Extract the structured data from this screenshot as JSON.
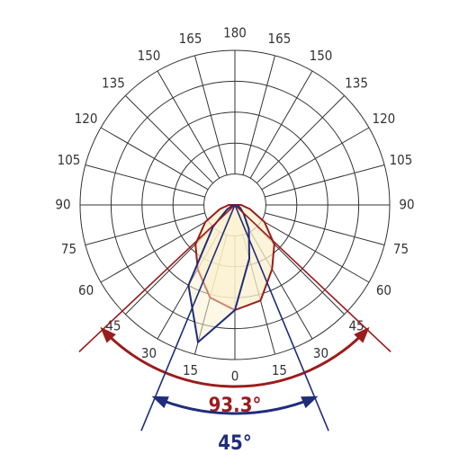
{
  "chart_data": {
    "type": "polar",
    "theta": [
      -90,
      -75,
      -60,
      -45,
      -30,
      -15,
      0,
      15,
      30,
      45,
      60,
      75,
      90
    ],
    "series": [
      {
        "color": "#9b1c1c",
        "values": [
          0.2,
          0.5,
          1.1,
          1.8,
          2.4,
          3.1,
          3.4,
          3.2,
          2.4,
          1.8,
          1.1,
          0.5,
          0.2
        ]
      },
      {
        "color": "#1f2d7a",
        "values": [
          0,
          0.1,
          0.3,
          1.0,
          3.0,
          4.6,
          3.4,
          1.8,
          0.9,
          0.4,
          0.2,
          0.1,
          0
        ]
      }
    ],
    "theta_ticks": [
      {
        "value": -165,
        "label": "165"
      },
      {
        "value": -150,
        "label": "150"
      },
      {
        "value": -135,
        "label": "135"
      },
      {
        "value": -120,
        "label": "120"
      },
      {
        "value": -105,
        "label": "105"
      },
      {
        "value": -90,
        "label": "90"
      },
      {
        "value": -75,
        "label": "75"
      },
      {
        "value": -60,
        "label": "60"
      },
      {
        "value": -45,
        "label": "45"
      },
      {
        "value": -30,
        "label": "30"
      },
      {
        "value": -15,
        "label": "15"
      },
      0,
      15,
      30,
      45,
      60,
      75,
      90,
      105,
      120,
      135,
      150,
      165,
      180
    ],
    "beam_angles": [
      {
        "value": 93.3,
        "label": "93.3°",
        "color": "#9b1c1c"
      },
      {
        "value": 45,
        "label": "45°",
        "color": "#1f2d7a"
      }
    ]
  }
}
